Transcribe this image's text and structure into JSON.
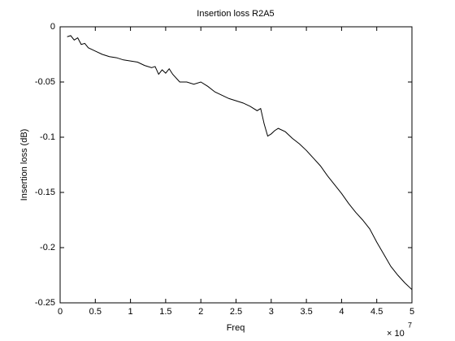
{
  "chart_data": {
    "type": "line",
    "title": "Insertion loss R2A5",
    "x_label": "Freq",
    "y_label": "Insertion loss (dB)",
    "x_exponent_label": {
      "base": "× 10",
      "exponent": "7"
    },
    "x": [
      0.1,
      0.15,
      0.2,
      0.25,
      0.3,
      0.35,
      0.4,
      0.5,
      0.6,
      0.7,
      0.8,
      0.9,
      1.0,
      1.1,
      1.2,
      1.3,
      1.35,
      1.4,
      1.45,
      1.5,
      1.55,
      1.6,
      1.7,
      1.8,
      1.9,
      2.0,
      2.1,
      2.2,
      2.3,
      2.4,
      2.5,
      2.6,
      2.7,
      2.8,
      2.85,
      2.9,
      2.95,
      3.0,
      3.05,
      3.1,
      3.2,
      3.3,
      3.4,
      3.5,
      3.6,
      3.7,
      3.8,
      3.9,
      4.0,
      4.1,
      4.2,
      4.3,
      4.4,
      4.5,
      4.6,
      4.7,
      4.8,
      4.9,
      5.0
    ],
    "series": [
      {
        "name": "Insertion loss",
        "color": "#000000",
        "values": [
          -0.009,
          -0.008,
          -0.012,
          -0.01,
          -0.016,
          -0.015,
          -0.019,
          -0.022,
          -0.025,
          -0.027,
          -0.028,
          -0.03,
          -0.031,
          -0.032,
          -0.035,
          -0.037,
          -0.036,
          -0.043,
          -0.039,
          -0.042,
          -0.038,
          -0.043,
          -0.05,
          -0.05,
          -0.052,
          -0.05,
          -0.054,
          -0.059,
          -0.062,
          -0.065,
          -0.067,
          -0.069,
          -0.072,
          -0.076,
          -0.074,
          -0.088,
          -0.099,
          -0.097,
          -0.094,
          -0.092,
          -0.095,
          -0.101,
          -0.106,
          -0.112,
          -0.119,
          -0.126,
          -0.135,
          -0.143,
          -0.151,
          -0.16,
          -0.168,
          -0.175,
          -0.183,
          -0.195,
          -0.206,
          -0.217,
          -0.225,
          -0.232,
          -0.238
        ]
      }
    ],
    "xlim": [
      0,
      5
    ],
    "ylim": [
      -0.25,
      0
    ],
    "xticks": [
      0,
      0.5,
      1,
      1.5,
      2,
      2.5,
      3,
      3.5,
      4,
      4.5,
      5
    ],
    "yticks": [
      -0.25,
      -0.2,
      -0.15,
      -0.1,
      -0.05,
      0
    ],
    "grid": false
  }
}
